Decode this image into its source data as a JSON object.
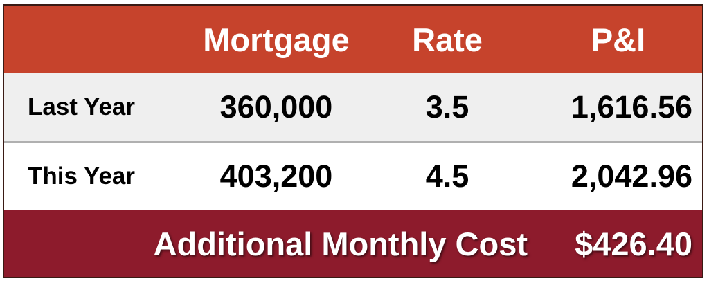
{
  "table": {
    "header": [
      "Mortgage",
      "Rate",
      "P&I"
    ],
    "rows": [
      {
        "label": "Last Year",
        "cells": [
          "360,000",
          "3.5",
          "1,616.56"
        ]
      },
      {
        "label": "This Year",
        "cells": [
          "403,200",
          "4.5",
          "2,042.96"
        ]
      }
    ],
    "footer": {
      "label": "Additional Monthly Cost",
      "value": "$426.40"
    }
  }
}
